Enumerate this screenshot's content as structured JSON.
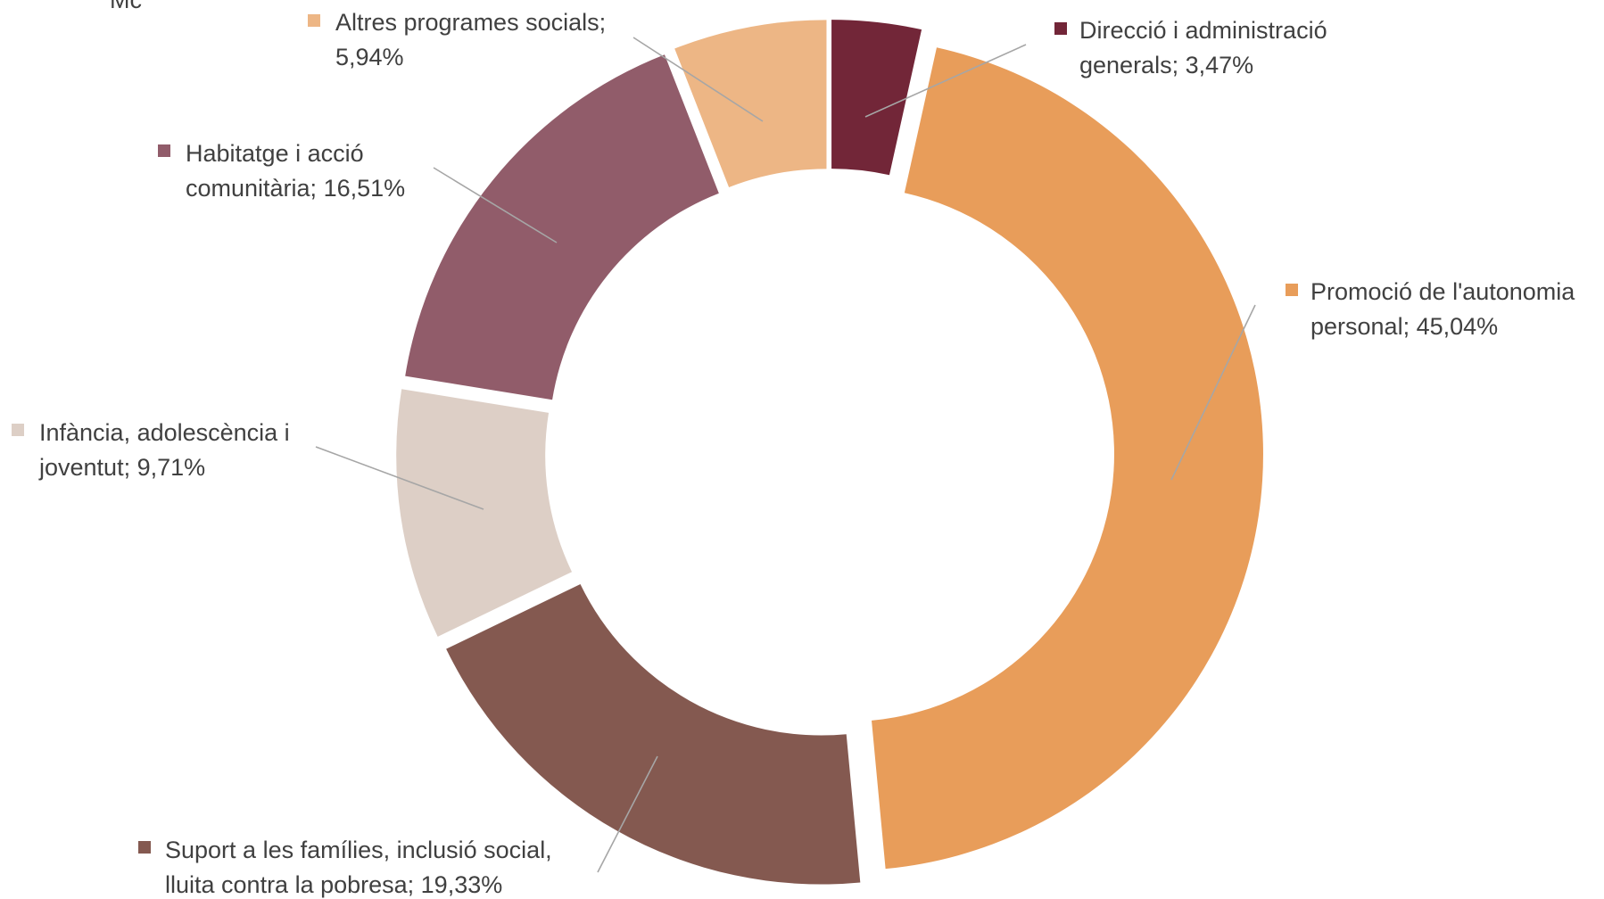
{
  "chart_data": {
    "type": "pie",
    "variant": "donut",
    "title": "",
    "clipped_text": "Mc",
    "unit": "%",
    "legend": "none",
    "slices": [
      {
        "name": "Direcció i administració generals",
        "value": 3.47,
        "label_lines": [
          "Direcció i administració",
          "generals; 3,47%"
        ],
        "color": "#722638"
      },
      {
        "name": "Promoció de l'autonomia personal",
        "value": 45.04,
        "label_lines": [
          "Promoció de l'autonomia",
          "personal; 45,04%"
        ],
        "color": "#e89d5a"
      },
      {
        "name": "Suport a les famílies, inclusió social, lluita contra la pobresa",
        "value": 19.33,
        "label_lines": [
          "Suport a les famílies, inclusió social,",
          "lluita contra la pobresa; 19,33%"
        ],
        "color": "#845950"
      },
      {
        "name": "Infància, adolescència i joventut",
        "value": 9.71,
        "label_lines": [
          "Infància, adolescència i",
          "joventut; 9,71%"
        ],
        "color": "#ddcfc6"
      },
      {
        "name": "Habitatge i acció comunitària",
        "value": 16.51,
        "label_lines": [
          "Habitatge i acció",
          "comunitària; 16,51%"
        ],
        "color": "#915c6a"
      },
      {
        "name": "Altres programes socials",
        "value": 5.94,
        "label_lines": [
          "Altres programes socials;",
          "5,94%"
        ],
        "color": "#edb685"
      }
    ]
  }
}
